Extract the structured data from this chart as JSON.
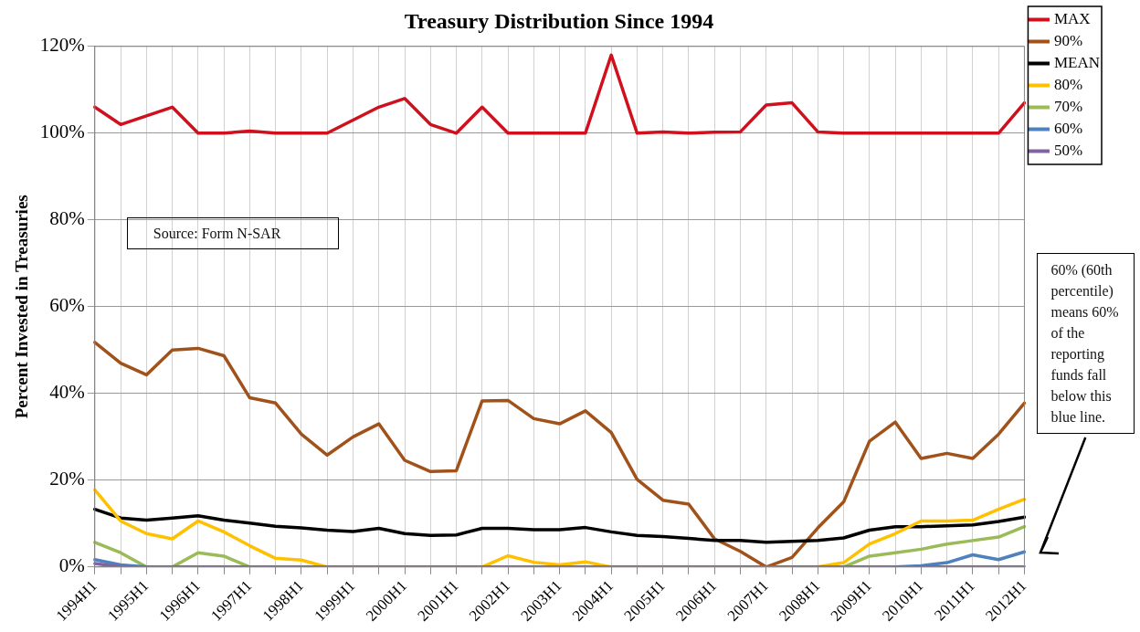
{
  "chart_data": {
    "type": "line",
    "title": "Treasury Distribution Since 1994",
    "ylabel": "Percent Invested in Treasuries",
    "categories": [
      "1994H1",
      null,
      "1995H1",
      null,
      "1996H1",
      null,
      "1997H1",
      null,
      "1998H1",
      null,
      "1999H1",
      null,
      "2000H1",
      null,
      "2001H1",
      null,
      "2002H1",
      null,
      "2003H1",
      null,
      "2004H1",
      null,
      "2005H1",
      null,
      "2006H1",
      null,
      "2007H1",
      null,
      "2008H1",
      null,
      "2009H1",
      null,
      "2010H1",
      null,
      "2011H1",
      null,
      "2012H1"
    ],
    "ylim": [
      0,
      120
    ],
    "yticks": [
      {
        "value": 0,
        "label": "0%"
      },
      {
        "value": 20,
        "label": "20%"
      },
      {
        "value": 40,
        "label": "40%"
      },
      {
        "value": 60,
        "label": "60%"
      },
      {
        "value": 80,
        "label": "80%"
      },
      {
        "value": 100,
        "label": "100%"
      },
      {
        "value": 120,
        "label": "120%"
      }
    ],
    "grid": true,
    "legend": "right",
    "marker": "none",
    "line_style": "solid",
    "series": [
      {
        "name": "MAX",
        "color": "#d0101c",
        "values": [
          106,
          102,
          104,
          106,
          100,
          100,
          100.5,
          100,
          100,
          100,
          103,
          106,
          108,
          102,
          100,
          106,
          100,
          100,
          100,
          100,
          118,
          100,
          100.3,
          100,
          100.2,
          100.3,
          106.5,
          107,
          100.3,
          100,
          100,
          100,
          100,
          100,
          100,
          100,
          107
        ]
      },
      {
        "name": "90%",
        "color": "#a0521a",
        "values": [
          51.8,
          47,
          44.3,
          50,
          50.4,
          48.7,
          39,
          37.8,
          30.6,
          25.8,
          30,
          33,
          24.6,
          22,
          22.2,
          38.3,
          38.4,
          34.2,
          33,
          36,
          31,
          20.2,
          15.4,
          14.5,
          6.5,
          3.6,
          0,
          2.2,
          9,
          15,
          29,
          33.4,
          25,
          26.2,
          25,
          30.6,
          37.8
        ]
      },
      {
        "name": "MEAN",
        "color": "#000000",
        "values": [
          13.3,
          11.3,
          10.8,
          11.3,
          11.8,
          10.8,
          10.1,
          9.4,
          9,
          8.5,
          8.2,
          8.9,
          7.7,
          7.3,
          7.4,
          8.9,
          8.9,
          8.6,
          8.6,
          9.1,
          8.1,
          7.3,
          7,
          6.6,
          6.1,
          6.1,
          5.7,
          5.9,
          6.1,
          6.7,
          8.5,
          9.3,
          9.3,
          9.5,
          9.7,
          10.5,
          11.5
        ]
      },
      {
        "name": "80%",
        "color": "#ffc000",
        "values": [
          17.8,
          10.6,
          7.7,
          6.5,
          10.6,
          8.1,
          4.9,
          2,
          1.6,
          0,
          0,
          0,
          0,
          0,
          0,
          0,
          2.6,
          1.1,
          0.5,
          1.2,
          0,
          0,
          0,
          0,
          0,
          0,
          0,
          0,
          0,
          1,
          5.3,
          7.7,
          10.6,
          10.6,
          10.8,
          13.3,
          15.6
        ]
      },
      {
        "name": "70%",
        "color": "#9bbb59",
        "values": [
          5.7,
          3.3,
          0,
          0,
          3.3,
          2.5,
          0,
          null,
          null,
          null,
          null,
          null,
          null,
          null,
          null,
          null,
          null,
          null,
          null,
          null,
          null,
          null,
          null,
          null,
          null,
          null,
          null,
          null,
          0,
          0,
          2.5,
          3.3,
          4.1,
          5.3,
          6.1,
          6.9,
          9.3
        ]
      },
      {
        "name": "60%",
        "color": "#4f81bd",
        "values": [
          1.7,
          0.5,
          0,
          null,
          null,
          null,
          null,
          null,
          null,
          null,
          null,
          null,
          null,
          null,
          null,
          null,
          null,
          null,
          null,
          null,
          null,
          null,
          null,
          null,
          null,
          null,
          null,
          null,
          null,
          null,
          null,
          0,
          0.3,
          1,
          2.8,
          1.7,
          3.5
        ]
      },
      {
        "name": "50%",
        "color": "#8064a2",
        "values": [
          0.8,
          0,
          0,
          0,
          0,
          0,
          0,
          0,
          0,
          0,
          0,
          0,
          0,
          0,
          0,
          0,
          0,
          0,
          0,
          0,
          0,
          0,
          0,
          0,
          0,
          0,
          0,
          0,
          0,
          0,
          0,
          0,
          0,
          0,
          0,
          0,
          0
        ]
      }
    ],
    "annotations": [
      "Source: Form N-SAR",
      "60% (60th percentile) means 60% of the reporting funds fall below this blue line."
    ]
  }
}
